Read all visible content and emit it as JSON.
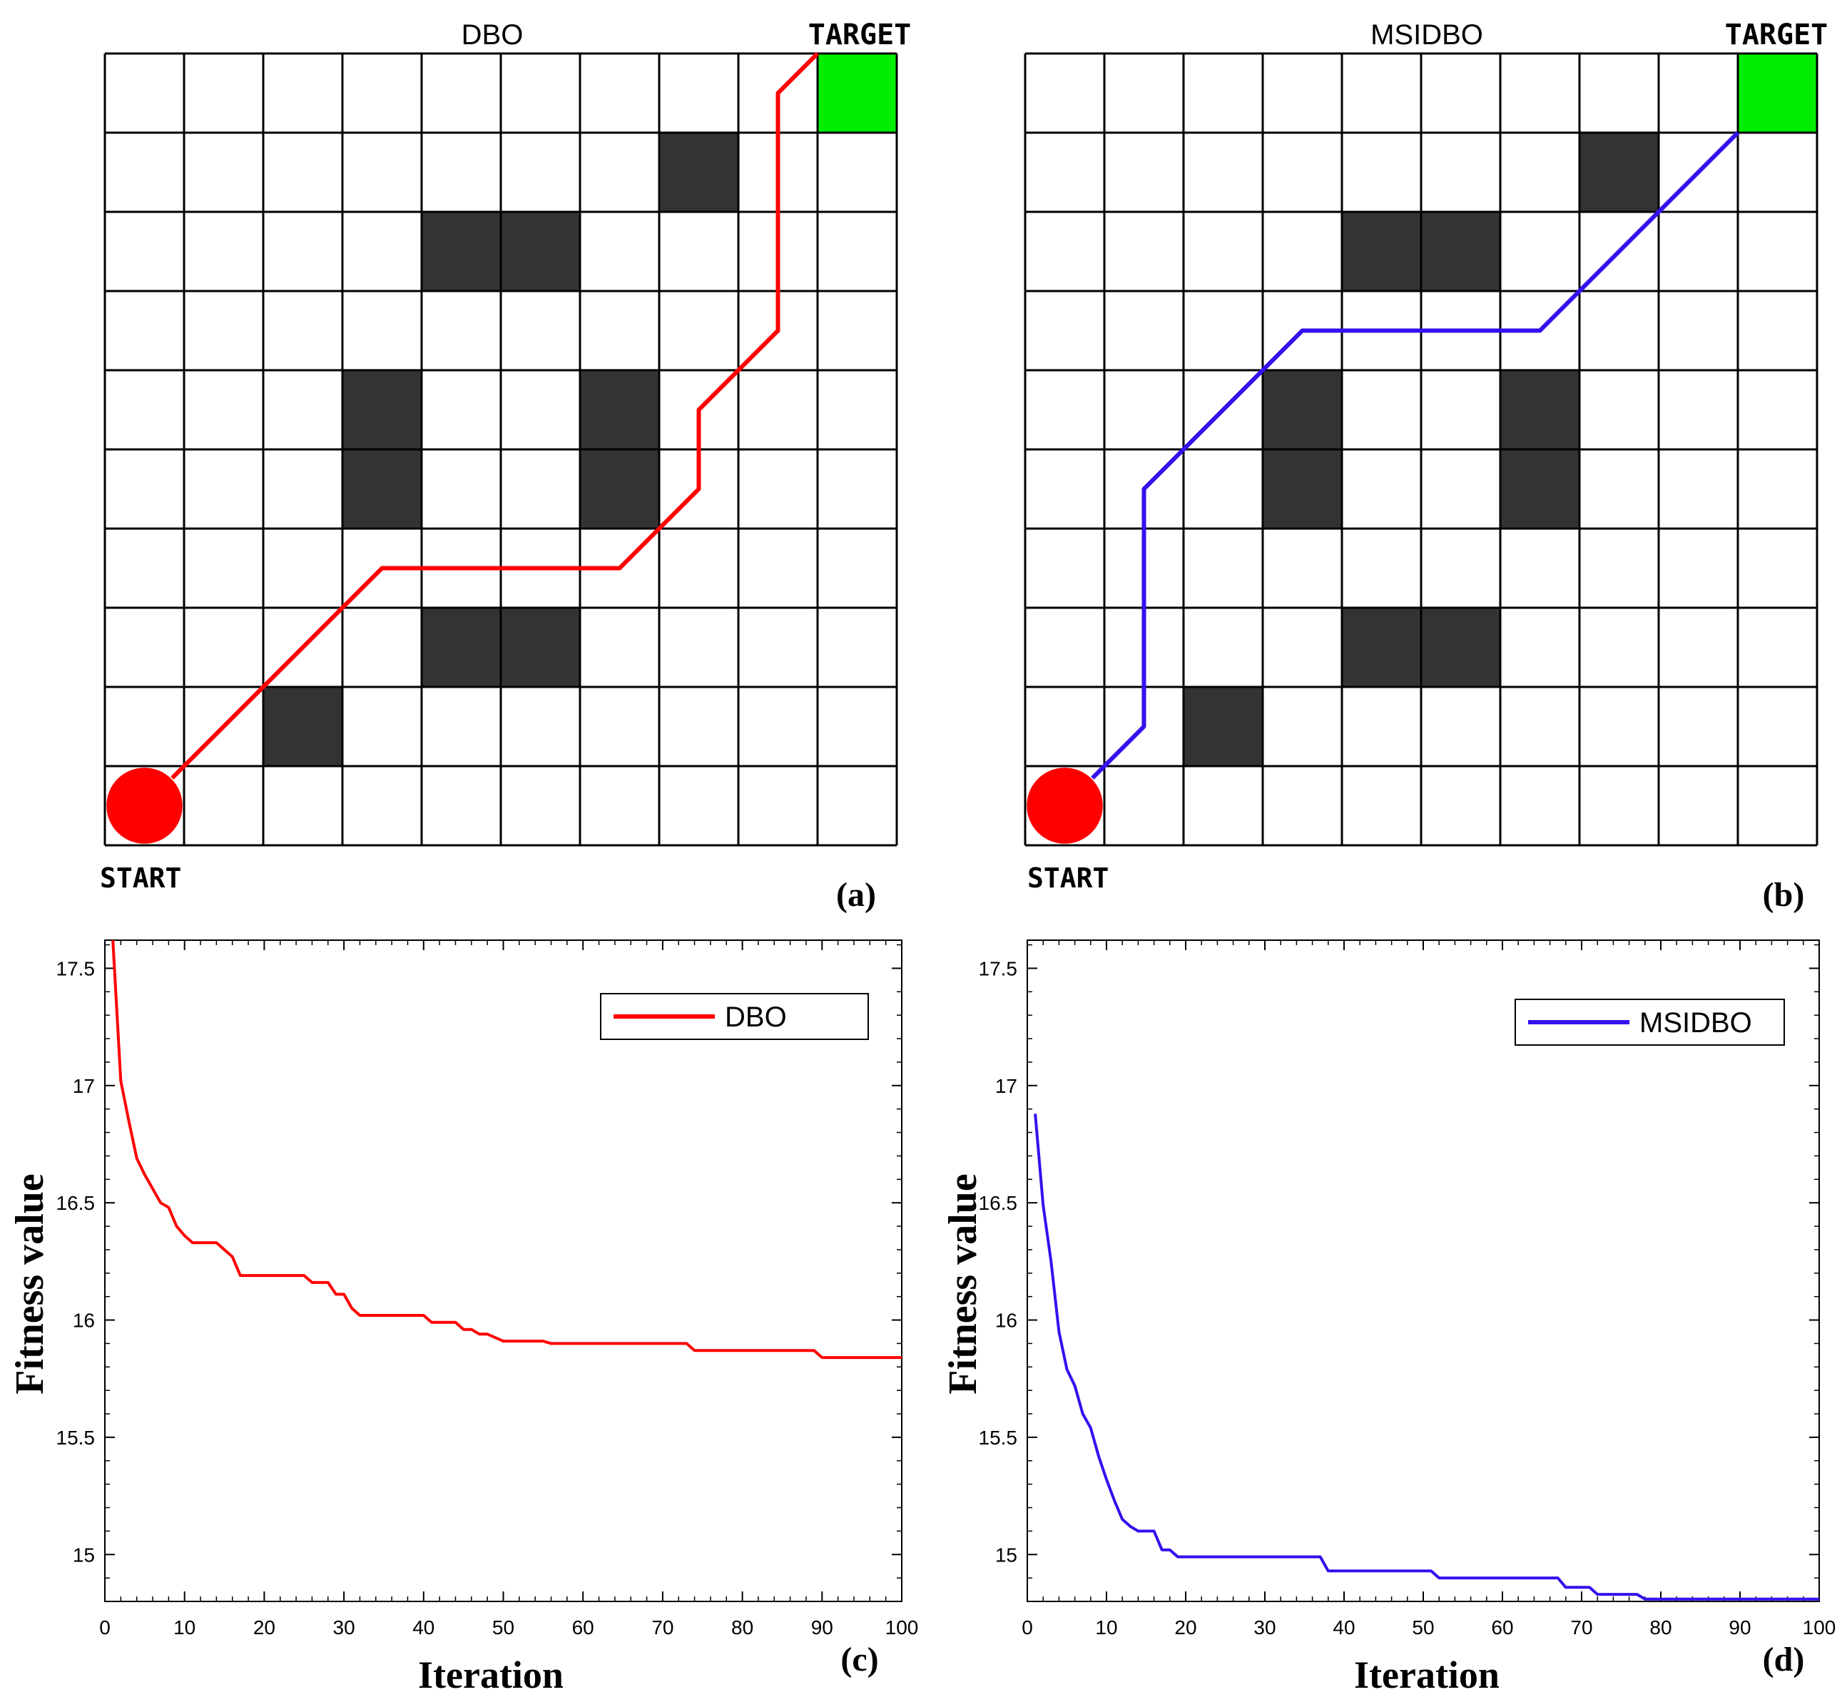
{
  "chart_data": [
    {
      "panel": "(a)",
      "type": "grid_path",
      "title": "DBO",
      "start_label": "START",
      "target_label": "TARGET",
      "grid": {
        "cols": 10,
        "rows": 10
      },
      "obstacles": [
        [
          7,
          1
        ],
        [
          4,
          2
        ],
        [
          5,
          2
        ],
        [
          3,
          4
        ],
        [
          6,
          4
        ],
        [
          3,
          5
        ],
        [
          6,
          5
        ],
        [
          4,
          7
        ],
        [
          5,
          7
        ],
        [
          2,
          8
        ]
      ],
      "target_cell": [
        9,
        0
      ],
      "start_cell": [
        0,
        9
      ],
      "path": [
        [
          0.85,
          9.15
        ],
        [
          3.5,
          6.5
        ],
        [
          6.5,
          6.5
        ],
        [
          7.5,
          5.5
        ],
        [
          7.5,
          4.5
        ],
        [
          8.5,
          3.5
        ],
        [
          8.5,
          0.5
        ],
        [
          9,
          0
        ]
      ],
      "path_color": "#ff0000",
      "target_color": "#00ee00",
      "obstacle_color": "#333333",
      "start_color": "#ff0000"
    },
    {
      "panel": "(b)",
      "type": "grid_path",
      "title": "MSIDBO",
      "start_label": "START",
      "target_label": "TARGET",
      "grid": {
        "cols": 10,
        "rows": 10
      },
      "obstacles": [
        [
          7,
          1
        ],
        [
          4,
          2
        ],
        [
          5,
          2
        ],
        [
          3,
          4
        ],
        [
          6,
          4
        ],
        [
          3,
          5
        ],
        [
          6,
          5
        ],
        [
          4,
          7
        ],
        [
          5,
          7
        ],
        [
          2,
          8
        ]
      ],
      "target_cell": [
        9,
        0
      ],
      "start_cell": [
        0,
        9
      ],
      "path": [
        [
          0.85,
          9.15
        ],
        [
          1.5,
          8.5
        ],
        [
          1.5,
          5.5
        ],
        [
          3.5,
          3.5
        ],
        [
          6.5,
          3.5
        ],
        [
          9,
          1
        ]
      ],
      "path_color": "#3311ee",
      "target_color": "#00ee00",
      "obstacle_color": "#333333",
      "start_color": "#ff0000"
    },
    {
      "panel": "(c)",
      "type": "line",
      "xlabel": "Iteration",
      "ylabel": "Fitness value",
      "xlim": [
        0,
        100
      ],
      "ylim": [
        14.8,
        17.62
      ],
      "xticks": [
        0,
        10,
        20,
        30,
        40,
        50,
        60,
        70,
        80,
        90,
        100
      ],
      "yticks": [
        15,
        15.5,
        16,
        16.5,
        17,
        17.5
      ],
      "ytick_labels": [
        "15",
        "15.5",
        "16",
        "16.5",
        "17",
        "17.5"
      ],
      "legend_position": "top-right",
      "series": [
        {
          "name": "DBO",
          "color": "#ff0000",
          "x": [
            1,
            2,
            3,
            4,
            5,
            6,
            7,
            8,
            9,
            10,
            11,
            12,
            14,
            16,
            17,
            18,
            20,
            25,
            26,
            28,
            29,
            30,
            31,
            32,
            35,
            40,
            41,
            42,
            44,
            45,
            46,
            47,
            48,
            50,
            52,
            55,
            56,
            60,
            65,
            70,
            73,
            74,
            80,
            89,
            90,
            100
          ],
          "y": [
            17.62,
            17.02,
            16.85,
            16.69,
            16.62,
            16.56,
            16.5,
            16.48,
            16.4,
            16.36,
            16.33,
            16.33,
            16.33,
            16.27,
            16.19,
            16.19,
            16.19,
            16.19,
            16.16,
            16.16,
            16.11,
            16.11,
            16.05,
            16.02,
            16.02,
            16.02,
            15.99,
            15.99,
            15.99,
            15.96,
            15.96,
            15.94,
            15.94,
            15.91,
            15.91,
            15.91,
            15.9,
            15.9,
            15.9,
            15.9,
            15.9,
            15.87,
            15.87,
            15.87,
            15.84,
            15.84
          ]
        }
      ]
    },
    {
      "panel": "(d)",
      "type": "line",
      "xlabel": "Iteration",
      "ylabel": "Fitness value",
      "xlim": [
        0,
        100
      ],
      "ylim": [
        14.8,
        17.62
      ],
      "xticks": [
        0,
        10,
        20,
        30,
        40,
        50,
        60,
        70,
        80,
        90,
        100
      ],
      "yticks": [
        15,
        15.5,
        16,
        16.5,
        17,
        17.5
      ],
      "ytick_labels": [
        "15",
        "15.5",
        "16",
        "16.5",
        "17",
        "17.5"
      ],
      "legend_position": "top-right",
      "series": [
        {
          "name": "MSIDBO",
          "color": "#3311ee",
          "x": [
            1,
            2,
            3,
            4,
            5,
            6,
            7,
            8,
            9,
            10,
            11,
            12,
            13,
            14,
            15,
            16,
            17,
            18,
            19,
            20,
            30,
            37,
            38,
            40,
            51,
            52,
            60,
            67,
            68,
            71,
            72,
            77,
            78,
            80,
            90,
            100
          ],
          "y": [
            16.88,
            16.49,
            16.25,
            15.95,
            15.79,
            15.72,
            15.6,
            15.54,
            15.42,
            15.32,
            15.23,
            15.15,
            15.12,
            15.1,
            15.1,
            15.1,
            15.02,
            15.02,
            14.99,
            14.99,
            14.99,
            14.99,
            14.93,
            14.93,
            14.93,
            14.9,
            14.9,
            14.9,
            14.86,
            14.86,
            14.83,
            14.83,
            14.81,
            14.81,
            14.81,
            14.81
          ]
        }
      ]
    }
  ],
  "panel_labels": {
    "a": "(a)",
    "b": "(b)",
    "c": "(c)",
    "d": "(d)"
  }
}
